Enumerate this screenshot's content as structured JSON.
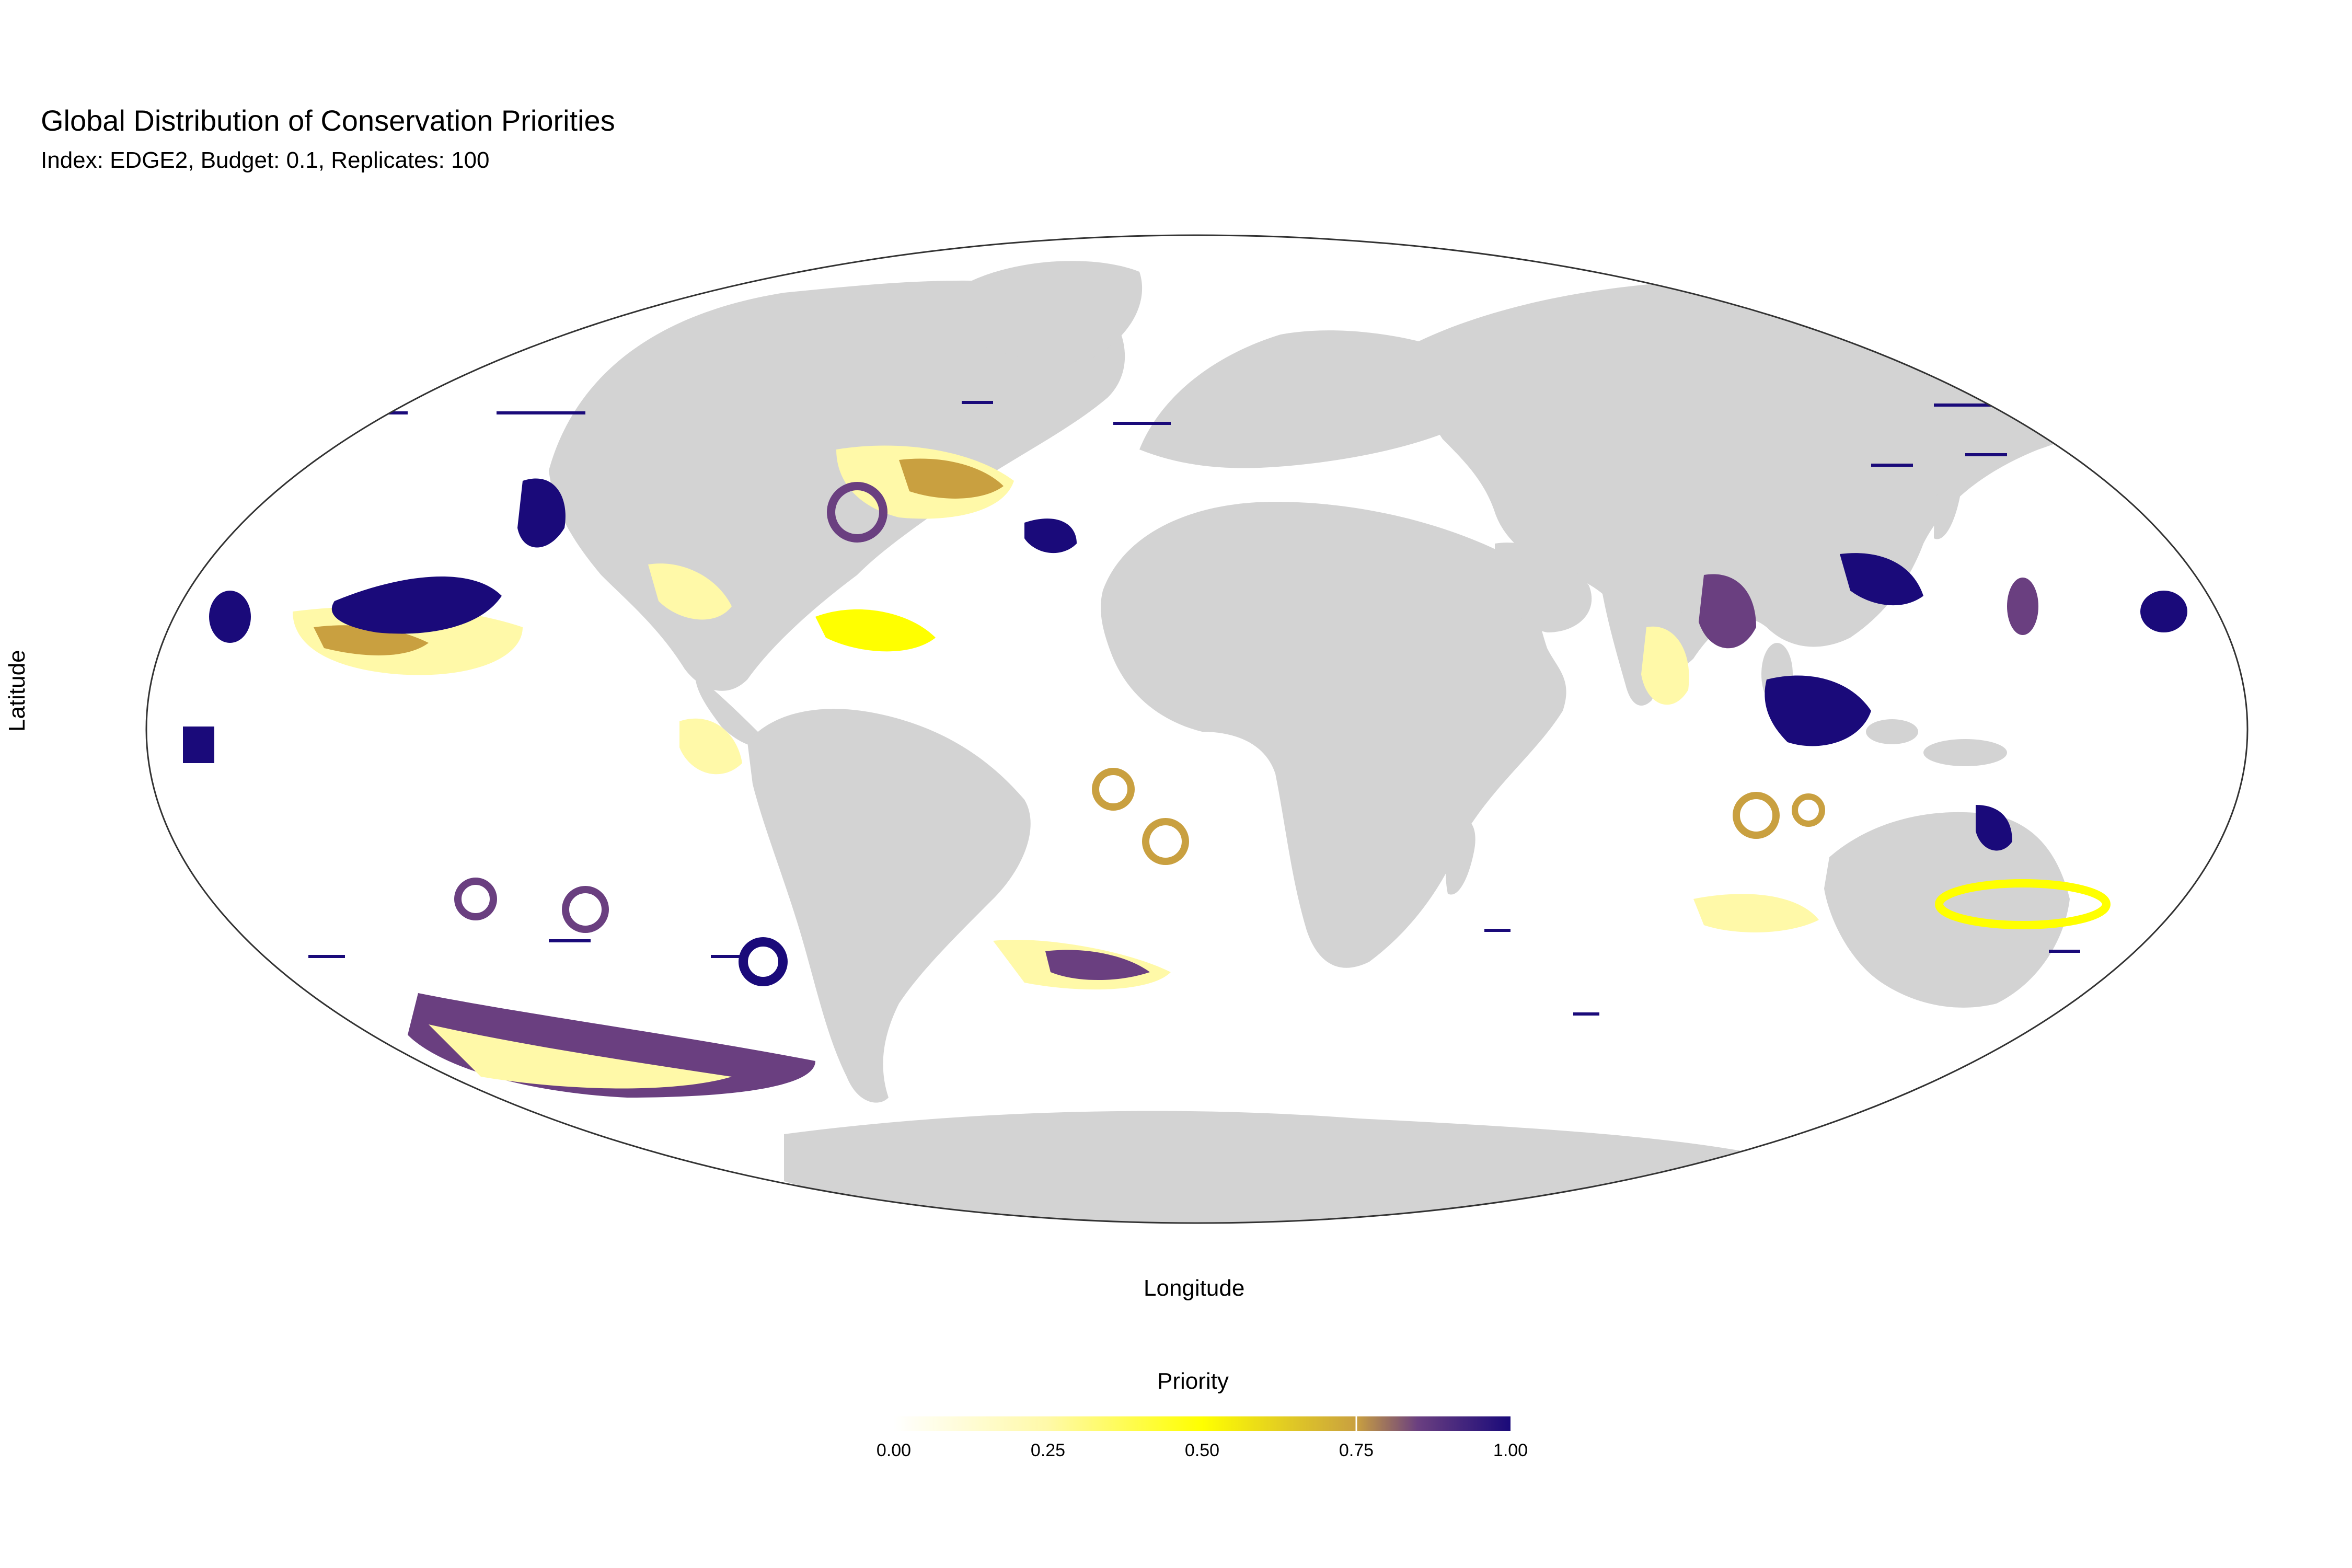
{
  "title": "Global Distribution of Conservation Priorities",
  "subtitle": "Index: EDGE2, Budget: 0.1, Replicates: 100",
  "axes": {
    "x_label": "Longitude",
    "y_label": "Latitude"
  },
  "projection": "mollweide",
  "map_style": {
    "land_color": "#d3d3d3",
    "ocean_color": "#ffffff",
    "outline_color": "#333333"
  },
  "legend": {
    "title": "Priority",
    "ticks": [
      "0.00",
      "0.25",
      "0.50",
      "0.75",
      "1.00"
    ],
    "colormap": [
      "#ffffff",
      "#fff9a8",
      "#ffff00",
      "#c9a040",
      "#6a3f80",
      "#1a0a7a"
    ],
    "range": [
      0,
      1
    ]
  }
}
